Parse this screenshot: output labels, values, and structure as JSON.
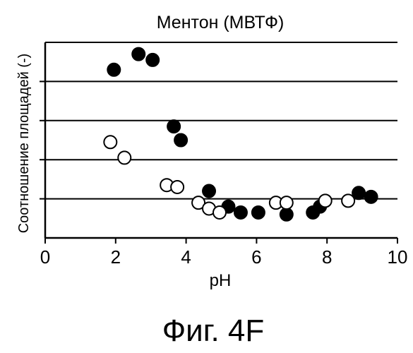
{
  "chart_data": {
    "type": "scatter",
    "title": "Ментон (МВТФ)",
    "xlabel": "pH",
    "ylabel": "Соотношение площадей (-)",
    "xlim": [
      0,
      10
    ],
    "xticks": [
      "0",
      "2",
      "4",
      "6",
      "8",
      "10"
    ],
    "ylim": [
      0,
      5
    ],
    "y_tick_labels_shown": false,
    "grid": "horizontal",
    "legend": "none",
    "series": [
      {
        "marker": "filled-circle",
        "color": "#000000",
        "points": [
          {
            "x": 1.95,
            "y": 4.3
          },
          {
            "x": 2.65,
            "y": 4.7
          },
          {
            "x": 3.05,
            "y": 4.55
          },
          {
            "x": 3.65,
            "y": 2.85
          },
          {
            "x": 3.85,
            "y": 2.5
          },
          {
            "x": 4.65,
            "y": 1.2
          },
          {
            "x": 5.2,
            "y": 0.8
          },
          {
            "x": 5.55,
            "y": 0.65
          },
          {
            "x": 6.05,
            "y": 0.65
          },
          {
            "x": 6.85,
            "y": 0.6
          },
          {
            "x": 7.6,
            "y": 0.65
          },
          {
            "x": 7.8,
            "y": 0.8
          },
          {
            "x": 8.9,
            "y": 1.15
          },
          {
            "x": 9.25,
            "y": 1.05
          }
        ]
      },
      {
        "marker": "open-circle",
        "color": "#000000",
        "points": [
          {
            "x": 1.85,
            "y": 2.45
          },
          {
            "x": 2.25,
            "y": 2.05
          },
          {
            "x": 3.45,
            "y": 1.35
          },
          {
            "x": 3.75,
            "y": 1.3
          },
          {
            "x": 4.35,
            "y": 0.9
          },
          {
            "x": 4.65,
            "y": 0.75
          },
          {
            "x": 4.95,
            "y": 0.65
          },
          {
            "x": 6.55,
            "y": 0.9
          },
          {
            "x": 6.85,
            "y": 0.9
          },
          {
            "x": 7.95,
            "y": 0.95
          },
          {
            "x": 8.6,
            "y": 0.95
          }
        ]
      }
    ]
  },
  "figure_caption": "Фиг. 4F"
}
